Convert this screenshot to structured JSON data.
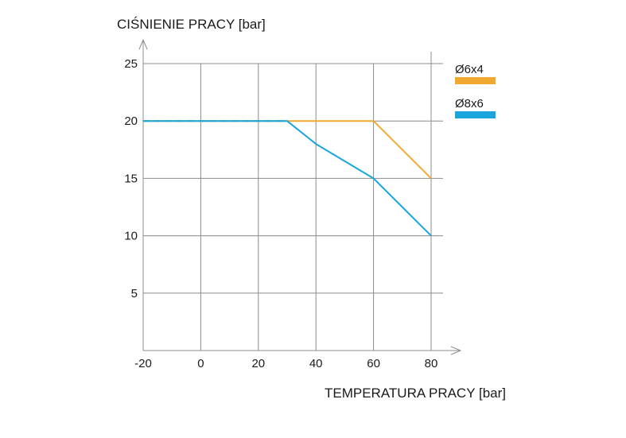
{
  "chart_data": {
    "type": "line",
    "ylabel": "CIŚNIENIE PRACY [bar]",
    "xlabel": "TEMPERATURA PRACY [bar]",
    "x_ticks": [
      "-20",
      "0",
      "20",
      "40",
      "60",
      "80"
    ],
    "y_ticks": [
      "5",
      "10",
      "15",
      "20",
      "25"
    ],
    "xlim": [
      -20,
      80
    ],
    "ylim": [
      0,
      25
    ],
    "grid": true,
    "legend_position": "right",
    "series": [
      {
        "name": "Ø6x4",
        "color": "#f0a830",
        "x": [
          -20,
          0,
          20,
          30,
          40,
          60,
          80
        ],
        "y": [
          20,
          20,
          20,
          20,
          20,
          20,
          15
        ]
      },
      {
        "name": "Ø8x6",
        "color": "#1aa6dc",
        "x": [
          -20,
          0,
          20,
          30,
          40,
          60,
          80
        ],
        "y": [
          20,
          20,
          20,
          20,
          18,
          15,
          10
        ]
      }
    ]
  }
}
